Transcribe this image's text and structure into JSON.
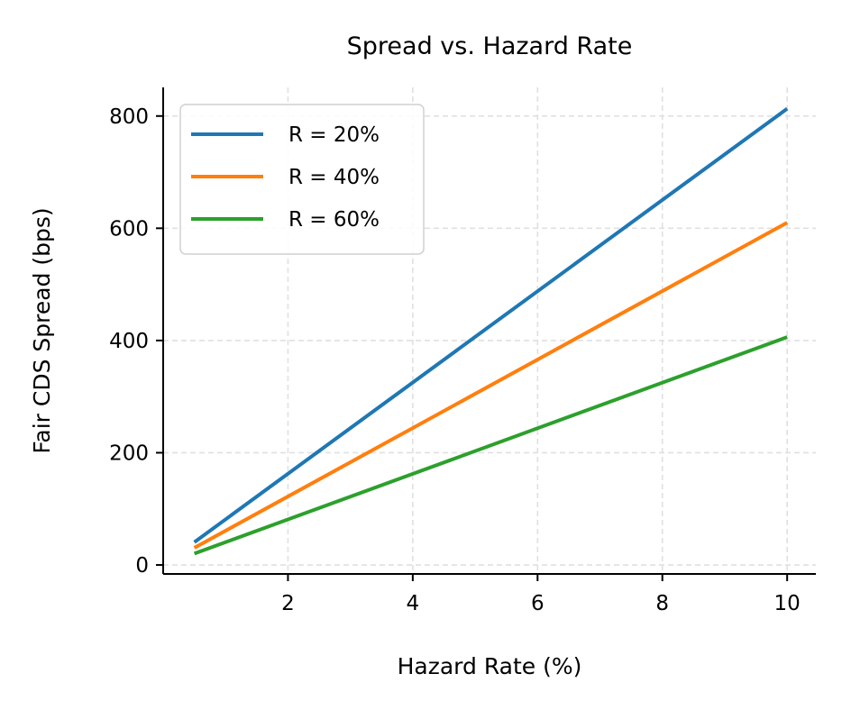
{
  "chart_data": {
    "type": "line",
    "title": "Spread vs. Hazard Rate",
    "xlabel": "Hazard Rate (%)",
    "ylabel": "Fair CDS Spread (bps)",
    "xlim": [
      0.0,
      10.46
    ],
    "ylim": [
      -16,
      851
    ],
    "xticks": [
      2,
      4,
      6,
      8,
      10
    ],
    "yticks": [
      0,
      200,
      400,
      600,
      800
    ],
    "grid": true,
    "legend_position": "top-left",
    "series": [
      {
        "name": "R = 20%",
        "color": "#1f77b4",
        "x": [
          0.5,
          10
        ],
        "y": [
          40.6,
          813
        ]
      },
      {
        "name": "R = 40%",
        "color": "#ff7f0e",
        "x": [
          0.5,
          10
        ],
        "y": [
          30.5,
          610
        ]
      },
      {
        "name": "R = 60%",
        "color": "#2ca02c",
        "x": [
          0.5,
          10
        ],
        "y": [
          20.3,
          406
        ]
      }
    ]
  }
}
